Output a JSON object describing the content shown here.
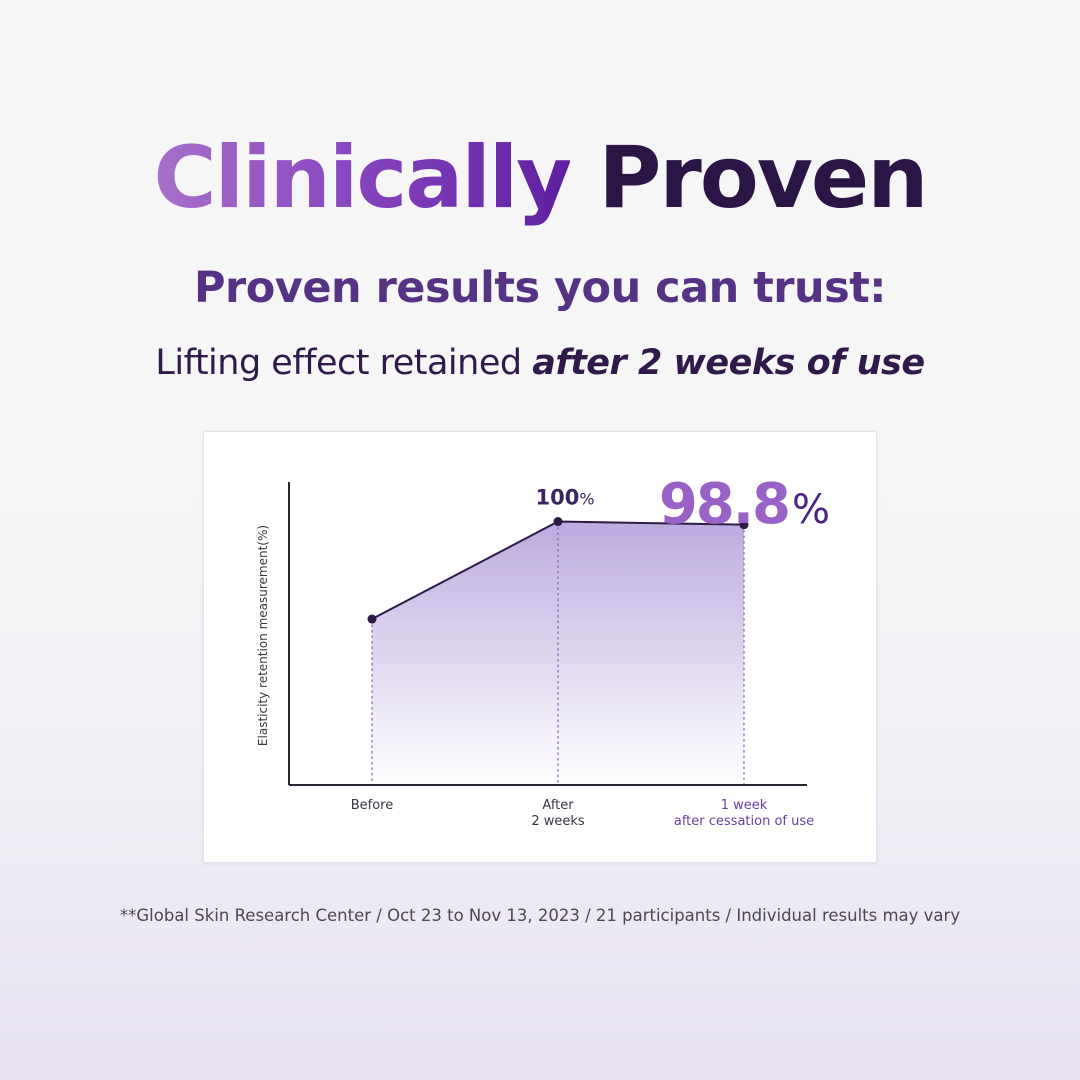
{
  "heading": {
    "accent": "Clinically",
    "rest": "Proven"
  },
  "subtitle": "Proven results you can trust:",
  "tagline": {
    "plain": "Lifting effect retained",
    "emphasis": "after 2 weeks of use"
  },
  "chart_data": {
    "type": "area",
    "ylabel": "Elasticity retention measurement(%)",
    "categories": [
      [
        "Before"
      ],
      [
        "After",
        "2 weeks"
      ],
      [
        "1 week",
        "after cessation of use"
      ]
    ],
    "values": [
      63,
      100,
      98.8
    ],
    "ylim": [
      0,
      115
    ],
    "value_labels": [
      {
        "index": 1,
        "number": "100",
        "unit": "%"
      },
      {
        "index": 2,
        "number": "98.8",
        "unit": "%"
      }
    ],
    "highlight_index": 2,
    "grid": false,
    "colors": {
      "line": "#2d1a45",
      "fill_top": "#b8a6de",
      "fill_bottom": "#ffffff",
      "dashed": "#8d6ab6",
      "highlight": "#6a3fa6",
      "axis": "#2a2330",
      "label": "#3c3644"
    }
  },
  "footnote": "**Global Skin Research Center / Oct 23 to Nov 13, 2023 / 21 participants / Individual results may vary"
}
